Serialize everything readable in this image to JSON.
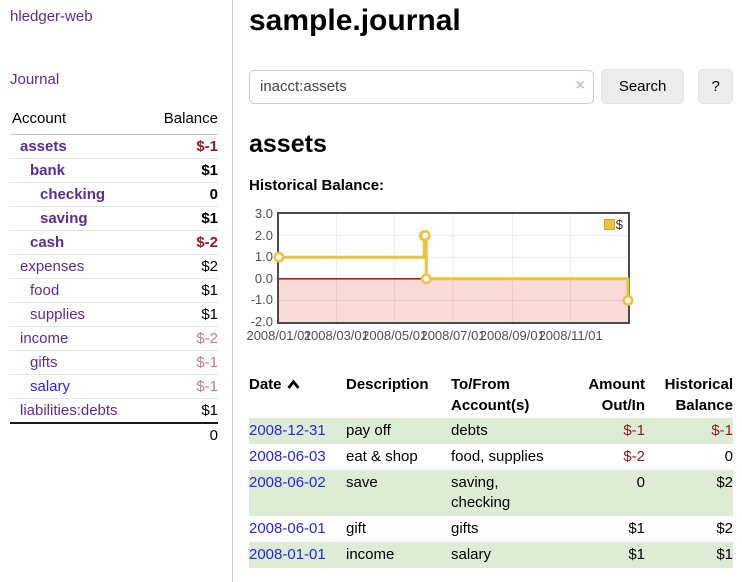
{
  "app": {
    "brand": "hledger-web",
    "nav_journal": "Journal"
  },
  "sidebar": {
    "headers": {
      "account": "Account",
      "balance": "Balance"
    },
    "rows": [
      {
        "account": "assets",
        "balance": "$-1"
      },
      {
        "account": "bank",
        "balance": "$1"
      },
      {
        "account": "checking",
        "balance": "0"
      },
      {
        "account": "saving",
        "balance": "$1"
      },
      {
        "account": "cash",
        "balance": "$-2"
      },
      {
        "account": "expenses",
        "balance": "$2"
      },
      {
        "account": "food",
        "balance": "$1"
      },
      {
        "account": "supplies",
        "balance": "$1"
      },
      {
        "account": "income",
        "balance": "$-2"
      },
      {
        "account": "gifts",
        "balance": "$-1"
      },
      {
        "account": "salary",
        "balance": "$-1"
      },
      {
        "account": "liabilities:debts",
        "balance": "$1"
      }
    ],
    "total": "0"
  },
  "header": {
    "title": "sample.journal"
  },
  "search": {
    "value": "inacct:assets",
    "clear_icon": "×",
    "search_label": "Search",
    "help_label": "?"
  },
  "account_page": {
    "title": "assets",
    "chart_label": "Historical Balance:"
  },
  "chart_data": {
    "type": "line",
    "step": true,
    "title": "Historical Balance",
    "series": [
      {
        "name": "$",
        "color": "#edc240",
        "points": [
          [
            "2008-01-01",
            1
          ],
          [
            "2008-06-01",
            2
          ],
          [
            "2008-06-02",
            2
          ],
          [
            "2008-06-03",
            0
          ],
          [
            "2008-12-31",
            -1
          ]
        ]
      }
    ],
    "xlim": [
      "2008-01-01",
      "2008-12-31"
    ],
    "ylim": [
      -2,
      3
    ],
    "yticks": [
      3.0,
      2.0,
      1.0,
      0.0,
      -1.0,
      -2.0
    ],
    "xticks": [
      "2008/01/01",
      "2008/03/01",
      "2008/05/01",
      "2008/07/01",
      "2008/09/01",
      "2008/11/01"
    ],
    "negative_fill": "#fbdada",
    "zero_line_color": "#990000",
    "grid_color": "rgba(0,0,0,0.08)",
    "legend_position": "top-right",
    "marker": "hollow-circle"
  },
  "register": {
    "headers": {
      "date": "Date",
      "description": "Description",
      "tofrom": "To/From Account(s)",
      "amount": "Amount Out/In",
      "balance": "Historical Balance"
    },
    "rows": [
      {
        "date": "2008-12-31",
        "description": "pay off",
        "tofrom": "debts",
        "amount": "$-1",
        "balance": "$-1"
      },
      {
        "date": "2008-06-03",
        "description": "eat & shop",
        "tofrom": "food, supplies",
        "amount": "$-2",
        "balance": "0"
      },
      {
        "date": "2008-06-02",
        "description": "save",
        "tofrom": "saving, checking",
        "amount": "0",
        "balance": "$2"
      },
      {
        "date": "2008-06-01",
        "description": "gift",
        "tofrom": "gifts",
        "amount": "$1",
        "balance": "$2"
      },
      {
        "date": "2008-01-01",
        "description": "income",
        "tofrom": "salary",
        "amount": "$1",
        "balance": "$1"
      }
    ]
  },
  "colors": {
    "link_purple": "#5c2d91",
    "link_blue": "#2727d6",
    "negative_strong": "#8f1a1a",
    "negative_muted": "#c08181",
    "row_stripe_green": "#dfecd5",
    "series_yellow": "#edc240",
    "negative_region_pink": "#fbdada"
  }
}
